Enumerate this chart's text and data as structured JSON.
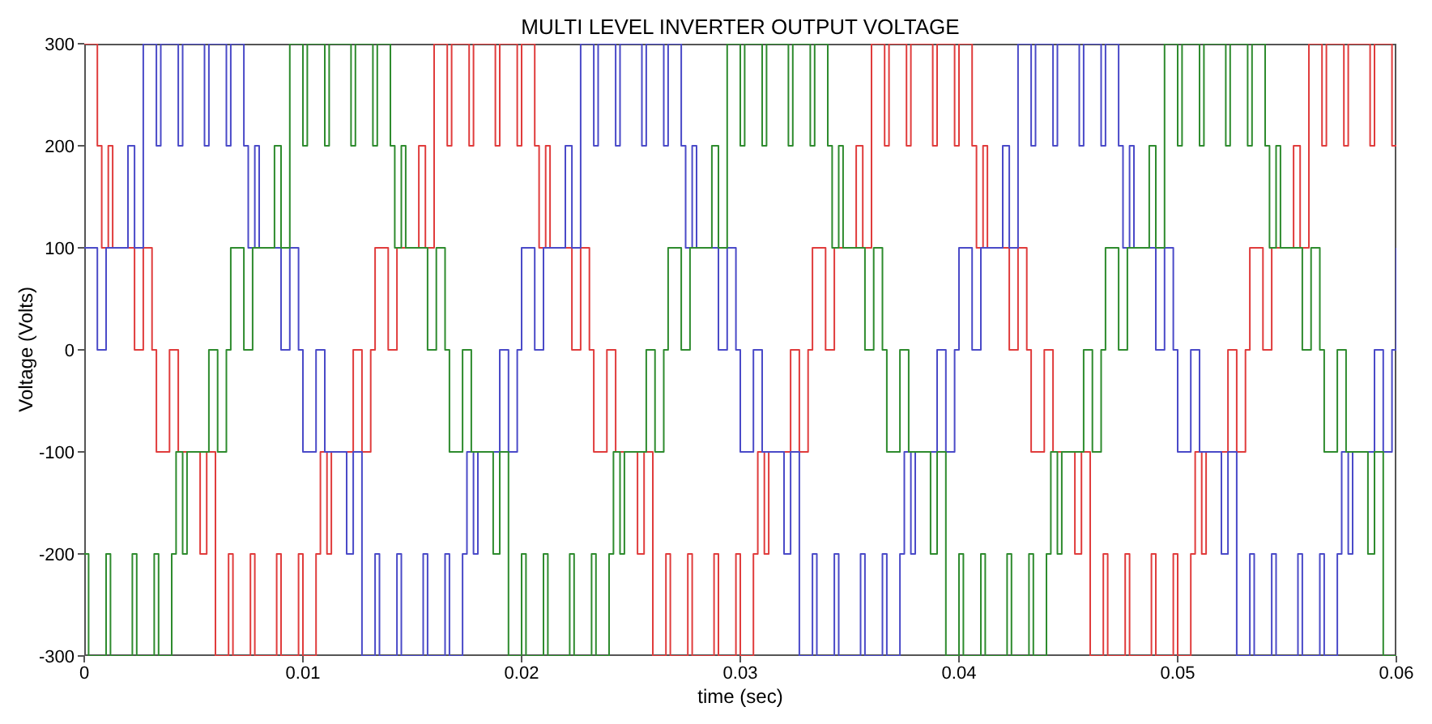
{
  "chart_data": {
    "type": "step",
    "title": "MULTI LEVEL INVERTER OUTPUT VOLTAGE",
    "xlabel": "time (sec)",
    "ylabel": "Voltage (Volts)",
    "xlim": [
      0,
      0.06
    ],
    "xticks": [
      0,
      0.01,
      0.02,
      0.03,
      0.04,
      0.05,
      0.06
    ],
    "ylim": [
      -300,
      300
    ],
    "yticks": [
      -300,
      -200,
      -100,
      0,
      100,
      200,
      300
    ],
    "legend": false,
    "marker": "none",
    "line_style": "solid",
    "series": [
      {
        "color": "#e03c3c",
        "x": [
          0,
          0.0006,
          0.0008,
          0.0011,
          0.0013,
          0.0023,
          0.0027,
          0.0031,
          0.0033,
          0.0039,
          0.0043,
          0.0053,
          0.0056,
          0.006,
          0.0066,
          0.0068,
          0.0076,
          0.0078,
          0.0088,
          0.009,
          0.0098,
          0.01,
          0.0106,
          0.0108,
          0.0111,
          0.0113,
          0.0123,
          0.0127,
          0.0131,
          0.0133,
          0.0139,
          0.0143,
          0.0153,
          0.0156,
          0.016,
          0.0166,
          0.0168,
          0.0176,
          0.0178,
          0.0188,
          0.019,
          0.0198,
          0.02,
          0.0206,
          0.0208,
          0.0211,
          0.0213,
          0.0223,
          0.0227,
          0.0231,
          0.0233,
          0.0239,
          0.0243,
          0.0253,
          0.0256,
          0.026,
          0.0266,
          0.0268,
          0.0276,
          0.0278,
          0.0288,
          0.029,
          0.0298,
          0.03,
          0.0306,
          0.0308,
          0.0311,
          0.0313,
          0.0323,
          0.0327,
          0.0331,
          0.0333,
          0.0339,
          0.0343,
          0.0353,
          0.0356,
          0.036,
          0.0366,
          0.0368,
          0.0376,
          0.0378,
          0.0388,
          0.039,
          0.0398,
          0.04,
          0.0406,
          0.0408,
          0.0411,
          0.0413,
          0.0423,
          0.0427,
          0.0431,
          0.0433,
          0.0439,
          0.0443,
          0.0453,
          0.0456,
          0.046,
          0.0466,
          0.0468,
          0.0476,
          0.0478,
          0.0488,
          0.049,
          0.0498,
          0.05,
          0.0506,
          0.0508,
          0.0511,
          0.0513,
          0.0523,
          0.0527,
          0.0531,
          0.0533,
          0.0539,
          0.0543,
          0.0553,
          0.0556,
          0.056,
          0.0566,
          0.0568,
          0.0576,
          0.0578,
          0.0588,
          0.059,
          0.0598,
          0.06
        ],
        "values": [
          300,
          200,
          100,
          200,
          100,
          0,
          100,
          0,
          -100,
          0,
          -100,
          -200,
          -100,
          -300,
          -200,
          -300,
          -200,
          -300,
          -200,
          -300,
          -200,
          -300,
          -200,
          -100,
          -200,
          -100,
          0,
          -100,
          0,
          100,
          0,
          100,
          200,
          100,
          300,
          200,
          300,
          200,
          300,
          200,
          300,
          200,
          300,
          200,
          100,
          200,
          100,
          0,
          100,
          0,
          -100,
          0,
          -100,
          -200,
          -100,
          -300,
          -200,
          -300,
          -200,
          -300,
          -200,
          -300,
          -200,
          -300,
          -200,
          -100,
          -200,
          -100,
          0,
          -100,
          0,
          100,
          0,
          100,
          200,
          100,
          300,
          200,
          300,
          200,
          300,
          200,
          300,
          200,
          300,
          200,
          100,
          200,
          100,
          0,
          100,
          0,
          -100,
          0,
          -100,
          -200,
          -100,
          -300,
          -200,
          -300,
          -200,
          -300,
          -200,
          -300,
          -200,
          -300,
          -200,
          -100,
          -200,
          -100,
          0,
          -100,
          0,
          100,
          0,
          100,
          200,
          100,
          300,
          200,
          300,
          200,
          300,
          200,
          300,
          200,
          200
        ]
      },
      {
        "color": "#4a4ac8",
        "x": [
          0,
          0.0006,
          0.001,
          0.002,
          0.0023,
          0.0027,
          0.0033,
          0.0035,
          0.0043,
          0.0045,
          0.0055,
          0.0057,
          0.0065,
          0.0067,
          0.0073,
          0.0075,
          0.0078,
          0.008,
          0.009,
          0.0094,
          0.0098,
          0.01,
          0.0106,
          0.011,
          0.012,
          0.0123,
          0.0127,
          0.0133,
          0.0135,
          0.0143,
          0.0145,
          0.0155,
          0.0157,
          0.0165,
          0.0167,
          0.0173,
          0.0175,
          0.0178,
          0.018,
          0.019,
          0.0194,
          0.0198,
          0.02,
          0.0206,
          0.021,
          0.022,
          0.0223,
          0.0227,
          0.0233,
          0.0235,
          0.0243,
          0.0245,
          0.0255,
          0.0257,
          0.0265,
          0.0267,
          0.0273,
          0.0275,
          0.0278,
          0.028,
          0.029,
          0.0294,
          0.0298,
          0.03,
          0.0306,
          0.031,
          0.032,
          0.0323,
          0.0327,
          0.0333,
          0.0335,
          0.0343,
          0.0345,
          0.0355,
          0.0357,
          0.0365,
          0.0367,
          0.0373,
          0.0375,
          0.0378,
          0.038,
          0.039,
          0.0394,
          0.0398,
          0.04,
          0.0406,
          0.041,
          0.042,
          0.0423,
          0.0427,
          0.0433,
          0.0435,
          0.0443,
          0.0445,
          0.0455,
          0.0457,
          0.0465,
          0.0467,
          0.0473,
          0.0475,
          0.0478,
          0.048,
          0.049,
          0.0494,
          0.0498,
          0.05,
          0.0506,
          0.051,
          0.052,
          0.0523,
          0.0527,
          0.0533,
          0.0535,
          0.0543,
          0.0545,
          0.0555,
          0.0557,
          0.0565,
          0.0567,
          0.0573,
          0.0575,
          0.0578,
          0.058,
          0.059,
          0.0594,
          0.0598,
          0.06
        ],
        "values": [
          100,
          0,
          100,
          200,
          100,
          300,
          200,
          300,
          200,
          300,
          200,
          300,
          200,
          300,
          200,
          100,
          200,
          100,
          0,
          100,
          0,
          -100,
          0,
          -100,
          -200,
          -100,
          -300,
          -200,
          -300,
          -200,
          -300,
          -200,
          -300,
          -200,
          -300,
          -200,
          -100,
          -200,
          -100,
          0,
          -100,
          0,
          100,
          0,
          100,
          200,
          100,
          300,
          200,
          300,
          200,
          300,
          200,
          300,
          200,
          300,
          200,
          100,
          200,
          100,
          0,
          100,
          0,
          -100,
          0,
          -100,
          -200,
          -100,
          -300,
          -200,
          -300,
          -200,
          -300,
          -200,
          -300,
          -200,
          -300,
          -200,
          -100,
          -200,
          -100,
          0,
          -100,
          0,
          100,
          0,
          100,
          200,
          100,
          300,
          200,
          300,
          200,
          300,
          200,
          300,
          200,
          300,
          200,
          100,
          200,
          100,
          0,
          100,
          0,
          -100,
          0,
          -100,
          -200,
          -100,
          -300,
          -200,
          -300,
          -200,
          -300,
          -200,
          -300,
          -200,
          -300,
          -200,
          -100,
          -200,
          -100,
          0,
          -100,
          0,
          100
        ]
      },
      {
        "color": "#2e8b2e",
        "x": [
          0,
          0.0002,
          0.001,
          0.0012,
          0.0022,
          0.0024,
          0.0032,
          0.0034,
          0.004,
          0.0042,
          0.0045,
          0.0047,
          0.0057,
          0.0061,
          0.0065,
          0.0067,
          0.0073,
          0.0077,
          0.0087,
          0.009,
          0.0094,
          0.01,
          0.0102,
          0.011,
          0.0112,
          0.0122,
          0.0124,
          0.0132,
          0.0134,
          0.014,
          0.0142,
          0.0145,
          0.0147,
          0.0157,
          0.0161,
          0.0165,
          0.0167,
          0.0173,
          0.0177,
          0.0187,
          0.019,
          0.0194,
          0.02,
          0.0202,
          0.021,
          0.0212,
          0.0222,
          0.0224,
          0.0232,
          0.0234,
          0.024,
          0.0242,
          0.0245,
          0.0247,
          0.0257,
          0.0261,
          0.0265,
          0.0267,
          0.0273,
          0.0277,
          0.0287,
          0.029,
          0.0294,
          0.03,
          0.0302,
          0.031,
          0.0312,
          0.0322,
          0.0324,
          0.0332,
          0.0334,
          0.034,
          0.0342,
          0.0345,
          0.0347,
          0.0357,
          0.0361,
          0.0365,
          0.0367,
          0.0373,
          0.0377,
          0.0387,
          0.039,
          0.0394,
          0.04,
          0.0402,
          0.041,
          0.0412,
          0.0422,
          0.0424,
          0.0432,
          0.0434,
          0.044,
          0.0442,
          0.0445,
          0.0447,
          0.0457,
          0.0461,
          0.0465,
          0.0467,
          0.0473,
          0.0477,
          0.0487,
          0.049,
          0.0494,
          0.05,
          0.0502,
          0.051,
          0.0512,
          0.0522,
          0.0524,
          0.0532,
          0.0534,
          0.054,
          0.0542,
          0.0545,
          0.0547,
          0.0557,
          0.0561,
          0.0565,
          0.0567,
          0.0573,
          0.0577,
          0.0587,
          0.059,
          0.0594,
          0.06
        ],
        "values": [
          -200,
          -300,
          -200,
          -300,
          -200,
          -300,
          -200,
          -300,
          -200,
          -100,
          -200,
          -100,
          0,
          -100,
          0,
          100,
          0,
          100,
          200,
          100,
          300,
          200,
          300,
          200,
          300,
          200,
          300,
          200,
          300,
          200,
          100,
          200,
          100,
          0,
          100,
          0,
          -100,
          0,
          -100,
          -200,
          -100,
          -300,
          -200,
          -300,
          -200,
          -300,
          -200,
          -300,
          -200,
          -300,
          -200,
          -100,
          -200,
          -100,
          0,
          -100,
          0,
          100,
          0,
          100,
          200,
          100,
          300,
          200,
          300,
          200,
          300,
          200,
          300,
          200,
          300,
          200,
          100,
          200,
          100,
          0,
          100,
          0,
          -100,
          0,
          -100,
          -200,
          -100,
          -300,
          -200,
          -300,
          -200,
          -300,
          -200,
          -300,
          -200,
          -300,
          -200,
          -100,
          -200,
          -100,
          0,
          -100,
          0,
          100,
          0,
          100,
          200,
          100,
          300,
          200,
          300,
          200,
          300,
          200,
          300,
          200,
          300,
          200,
          100,
          200,
          100,
          0,
          100,
          0,
          -100,
          0,
          -100,
          -200,
          -100,
          -300,
          -300
        ]
      }
    ]
  }
}
